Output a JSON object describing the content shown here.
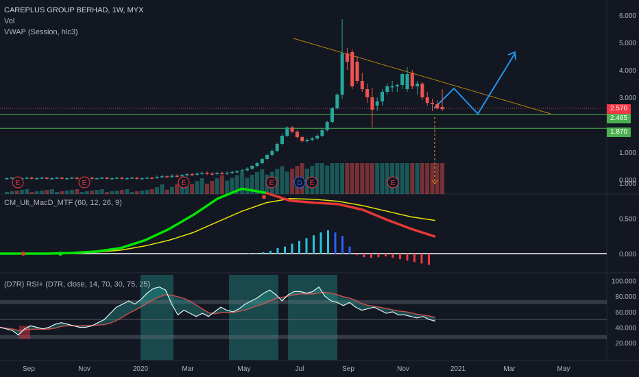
{
  "header": {
    "symbol_title": "CAREPLUS GROUP BERHAD, 1W, MYX",
    "vol_label": "Vol",
    "vwap_label": "VWAP (Session, hlc3)"
  },
  "indicators": {
    "macd_label": "CM_Ult_MacD_MTF (60, 12, 26, 9)",
    "rsi_label": "(D7R) RSI+ (D7R, close, 14, 70, 30, 75, 25)"
  },
  "price_labels": [
    {
      "text": "2.570",
      "value": 2.57,
      "color": "#f23645"
    },
    {
      "text": "2.465",
      "value": 2.465,
      "color": "#4caf50"
    },
    {
      "text": "1.870",
      "value": 1.87,
      "color": "#4caf50"
    }
  ],
  "colors": {
    "background": "#131722",
    "up": "#26a69a",
    "down": "#ef5350",
    "macd_up": "#00e600",
    "signal": "#e6e600",
    "rsi_line": "#e0f7f4",
    "trend_line": "#b8860b",
    "projection": "#2196f3",
    "support": "#4caf50"
  },
  "chart_data": [
    {
      "type": "candlestick",
      "title": "CAREPLUS GROUP BERHAD, 1W, MYX",
      "ylim": [
        -0.2,
        6.2
      ],
      "y_ticks": [
        "6.000",
        "5.000",
        "4.000",
        "3.000",
        "1.000",
        "0.000"
      ],
      "x_ticks": [
        "Sep",
        "Nov",
        "2020",
        "Mar",
        "May",
        "Jul",
        "Sep",
        "Nov",
        "2021",
        "Mar",
        "May"
      ],
      "earnings_markers": [
        "E",
        "E",
        "E",
        "E",
        "D",
        "E",
        "E"
      ],
      "horizontal_lines": [
        2.465,
        1.87
      ],
      "ohlc_notable": [
        {
          "x": "late Jul 2020",
          "open": 3.1,
          "high": 5.85,
          "low": 2.95,
          "close": 4.6
        },
        {
          "x": "early Aug 2020",
          "open": 4.65,
          "high": 4.75,
          "low": 3.3,
          "close": 3.4
        },
        {
          "x": "Sep 2020",
          "open": 3.0,
          "high": 3.35,
          "low": 1.9,
          "close": 2.55
        },
        {
          "x": "Oct 2020",
          "open": 3.3,
          "high": 4.1,
          "low": 3.2,
          "close": 3.85
        },
        {
          "x": "Dec 2020",
          "open": 2.65,
          "high": 3.3,
          "low": 2.5,
          "close": 2.57
        }
      ]
    },
    {
      "type": "line",
      "title": "CM_Ult_MacD_MTF (60, 12, 26, 9)",
      "ylim": [
        -0.25,
        1.05
      ],
      "y_ticks": [
        "1.000",
        "0.500",
        "0.000"
      ],
      "series": [
        {
          "values": [
            0.0,
            0.0,
            0.0,
            0.01,
            0.03,
            0.08,
            0.19,
            0.35,
            0.55,
            0.78,
            0.92,
            0.86,
            0.75,
            0.72,
            0.7,
            0.62,
            0.48,
            0.35,
            0.24
          ]
        },
        {
          "values": [
            0.0,
            0.0,
            0.0,
            0.005,
            0.02,
            0.05,
            0.11,
            0.19,
            0.3,
            0.45,
            0.6,
            0.72,
            0.78,
            0.77,
            0.74,
            0.68,
            0.6,
            0.52,
            0.47
          ]
        }
      ]
    },
    {
      "type": "area",
      "title": "(D7R) RSI+ (D7R, close, 14, 70, 30, 75, 25)",
      "ylim": [
        15,
        100
      ],
      "y_ticks": [
        "100.000",
        "80.000",
        "60.000",
        "40.000",
        "20.000"
      ],
      "reference_levels": [
        75,
        70,
        50,
        30,
        25
      ]
    }
  ]
}
